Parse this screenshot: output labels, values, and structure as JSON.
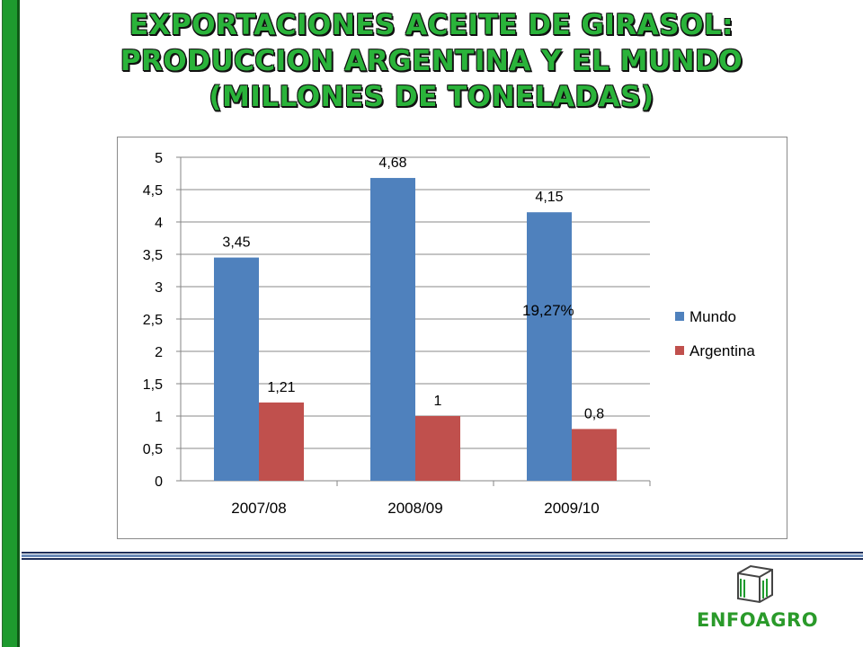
{
  "title": {
    "line1": "EXPORTACIONES ACEITE DE GIRASOL:",
    "line2": "PRODUCCION ARGENTINA Y EL MUNDO",
    "line3": "(MILLONES DE TONELADAS)"
  },
  "colors": {
    "mundo": "#4f81bd",
    "argentina": "#c0504d",
    "title": "#2ab33a",
    "brand": "#2a9a2a"
  },
  "annotation": "19,27%",
  "logo": {
    "text": "ENFOAGRO",
    "icon": "box-icon"
  },
  "chart_data": {
    "type": "bar",
    "categories": [
      "2007/08",
      "2008/09",
      "2009/10"
    ],
    "series": [
      {
        "name": "Mundo",
        "values": [
          3.45,
          4.68,
          4.15
        ],
        "labels": [
          "3,45",
          "4,68",
          "4,15"
        ]
      },
      {
        "name": "Argentina",
        "values": [
          1.21,
          1,
          0.8
        ],
        "labels": [
          "1,21",
          "1",
          "0,8"
        ]
      }
    ],
    "yticks": [
      "0",
      "0,5",
      "1",
      "1,5",
      "2",
      "2,5",
      "3",
      "3,5",
      "4",
      "4,5",
      "5"
    ],
    "ylim": [
      0,
      5
    ],
    "grid": true,
    "legend": "right"
  }
}
